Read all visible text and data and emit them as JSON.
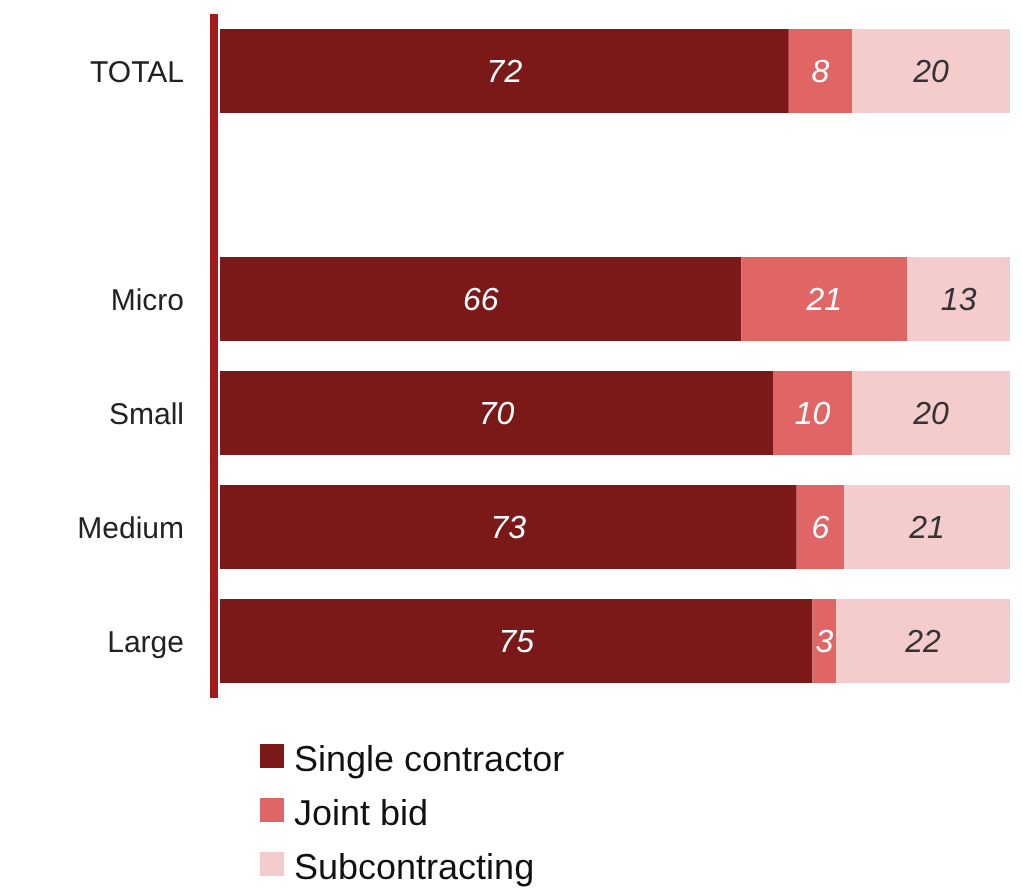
{
  "chart_data": {
    "type": "bar",
    "orientation": "horizontal",
    "stacked": true,
    "data_labels": true,
    "legend": "bottom left",
    "categories": [
      "TOTAL",
      null,
      "Micro",
      "Small",
      "Medium",
      "Large"
    ],
    "series": [
      {
        "name": "Single contractor",
        "color": "#7b1818",
        "values": [
          72,
          null,
          66,
          70,
          73,
          75
        ]
      },
      {
        "name": "Joint bid",
        "color": "#e06666",
        "values": [
          8,
          null,
          21,
          10,
          6,
          3
        ]
      },
      {
        "name": "Subcontracting",
        "color": "#f4cccc",
        "values": [
          20,
          null,
          13,
          20,
          21,
          22
        ]
      }
    ]
  }
}
